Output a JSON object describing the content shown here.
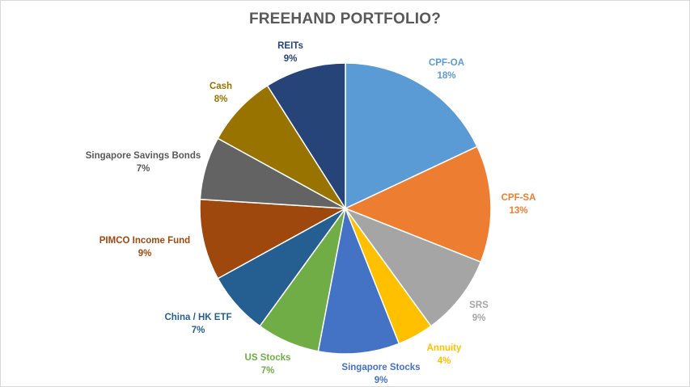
{
  "chart_data": {
    "type": "pie",
    "title": "FREEHAND PORTFOLIO?",
    "slices": [
      {
        "label": "CPF-OA",
        "pct_label": "18%",
        "value": 18,
        "color": "#5B9BD5"
      },
      {
        "label": "CPF-SA",
        "pct_label": "13%",
        "value": 13,
        "color": "#ED7D31"
      },
      {
        "label": "SRS",
        "pct_label": "9%",
        "value": 9,
        "color": "#A5A5A5"
      },
      {
        "label": "Annuity",
        "pct_label": "4%",
        "value": 4,
        "color": "#FFC000"
      },
      {
        "label": "Singapore Stocks",
        "pct_label": "9%",
        "value": 9,
        "color": "#4472C4"
      },
      {
        "label": "US Stocks",
        "pct_label": "7%",
        "value": 7,
        "color": "#70AD47"
      },
      {
        "label": "China / HK ETF",
        "pct_label": "7%",
        "value": 7,
        "color": "#255E91"
      },
      {
        "label": "PIMCO Income Fund",
        "pct_label": "9%",
        "value": 9,
        "color": "#9E480E"
      },
      {
        "label": "Singapore Savings Bonds",
        "pct_label": "7%",
        "value": 7,
        "color": "#636363"
      },
      {
        "label": "Cash",
        "pct_label": "8%",
        "value": 8,
        "color": "#997300"
      },
      {
        "label": "REITs",
        "pct_label": "9%",
        "value": 9,
        "color": "#264478"
      }
    ],
    "legend": "none",
    "data_labels": "outside"
  }
}
